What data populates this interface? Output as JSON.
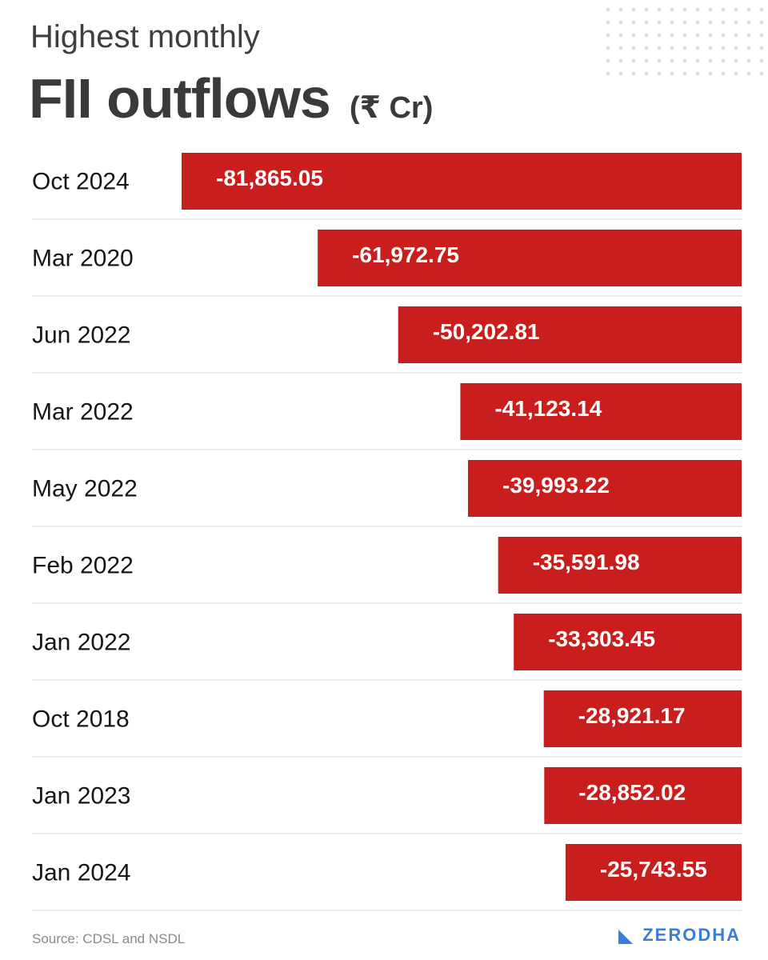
{
  "header": {
    "subtitle": "Highest monthly",
    "title": "FII outflows",
    "unit": "(₹ Cr)"
  },
  "footer": {
    "source": "Source: CDSL and NSDL",
    "brand": "ZERODHA"
  },
  "colors": {
    "bar": "#c81e1e",
    "divider": "#e6e6e6",
    "brand": "#3b7dd8"
  },
  "chart_data": {
    "type": "bar",
    "orientation": "horizontal",
    "categories": [
      "Oct 2024",
      "Mar 2020",
      "Jun 2022",
      "Mar 2022",
      "May 2022",
      "Feb 2022",
      "Jan 2022",
      "Oct 2018",
      "Jan 2023",
      "Jan 2024"
    ],
    "values": [
      -81865.05,
      -61972.75,
      -50202.81,
      -41123.14,
      -39993.22,
      -35591.98,
      -33303.45,
      -28921.17,
      -28852.02,
      -25743.55
    ],
    "value_labels": [
      "-81,865.05",
      "-61,972.75",
      "-50,202.81",
      "-41,123.14",
      "-39,993.22",
      "-35,591.98",
      "-33,303.45",
      "-28,921.17",
      "-28,852.02",
      "-25,743.55"
    ],
    "title": "FII outflows",
    "subtitle": "Highest monthly",
    "xlabel": "",
    "ylabel": "",
    "grid": false,
    "legend": "none"
  }
}
